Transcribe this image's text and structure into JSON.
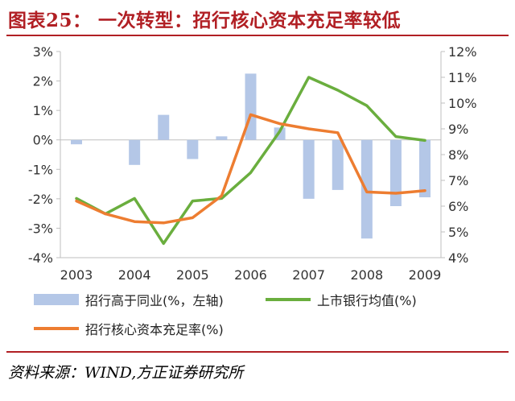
{
  "title": "图表25：  一次转型：招行核心资本充足率较低",
  "source": "资料来源：WIND,方正证券研究所",
  "colors": {
    "title": "#b11f24",
    "bars": "#b4c7e7",
    "green": "#6aae3e",
    "orange": "#ed7d31",
    "axis": "#bfbfbf",
    "text": "#333333"
  },
  "chart_data": {
    "type": "bar+line",
    "x_ticks": [
      "2003",
      "2004",
      "2005",
      "2006",
      "2007",
      "2008",
      "2009"
    ],
    "y_left": {
      "ticks": [
        "3%",
        "2%",
        "1%",
        "0%",
        "-1%",
        "-2%",
        "-3%",
        "-4%"
      ],
      "range": [
        -4,
        3
      ]
    },
    "y_right": {
      "ticks": [
        "12%",
        "11%",
        "10%",
        "9%",
        "8%",
        "7%",
        "6%",
        "5%",
        "4%"
      ],
      "range": [
        4,
        12
      ]
    },
    "bars": {
      "name": "招行高于同业(%，左轴)",
      "x": [
        2003,
        2004,
        2004.5,
        2005,
        2005.5,
        2006,
        2006.5,
        2007,
        2007.5,
        2008,
        2008.5,
        2009
      ],
      "values": [
        -0.15,
        -0.85,
        0.85,
        -0.65,
        0.12,
        2.25,
        0.42,
        -2.0,
        -1.7,
        -3.35,
        -2.25,
        -1.95
      ]
    },
    "series": [
      {
        "name": "上市银行均值(%)",
        "axis": "right",
        "x": [
          2003,
          2003.5,
          2004,
          2004.5,
          2005,
          2005.5,
          2006,
          2006.5,
          2007,
          2007.5,
          2008,
          2008.5,
          2009
        ],
        "values": [
          6.3,
          5.7,
          6.3,
          4.55,
          6.2,
          6.3,
          7.3,
          8.9,
          11.0,
          10.5,
          9.9,
          8.7,
          8.55
        ]
      },
      {
        "name": "招行核心资本充足率(%)",
        "axis": "right",
        "x": [
          2003,
          2003.5,
          2004,
          2004.5,
          2005,
          2005.5,
          2006,
          2006.5,
          2007,
          2007.5,
          2008,
          2008.5,
          2009
        ],
        "values": [
          6.2,
          5.7,
          5.4,
          5.35,
          5.55,
          6.4,
          9.55,
          9.2,
          9.0,
          8.85,
          6.55,
          6.5,
          6.6
        ]
      }
    ]
  }
}
